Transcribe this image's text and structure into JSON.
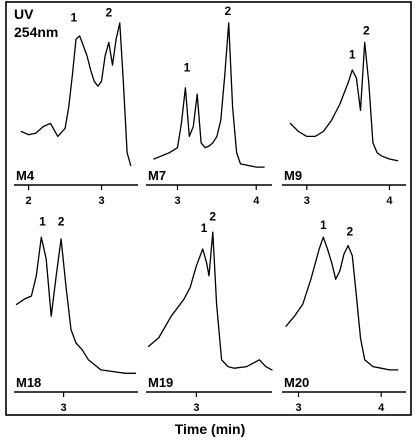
{
  "uv_label_line1": "UV",
  "uv_label_line2": "254nm",
  "xlabel": "Time (min)",
  "chart_data": [
    {
      "type": "line",
      "name": "M4",
      "xlim": [
        1.8,
        3.5
      ],
      "ticks": [
        2,
        3
      ],
      "peak_labels": [
        {
          "text": "1",
          "x": 2.62,
          "y": 0.93
        },
        {
          "text": "2",
          "x": 3.1,
          "y": 0.96
        }
      ],
      "x": [
        1.9,
        2.0,
        2.1,
        2.2,
        2.3,
        2.4,
        2.5,
        2.55,
        2.6,
        2.65,
        2.7,
        2.75,
        2.8,
        2.85,
        2.9,
        2.95,
        3.0,
        3.05,
        3.1,
        3.15,
        3.2,
        3.25,
        3.3,
        3.35,
        3.4
      ],
      "y": [
        0.25,
        0.23,
        0.24,
        0.28,
        0.3,
        0.22,
        0.27,
        0.4,
        0.6,
        0.82,
        0.84,
        0.78,
        0.72,
        0.63,
        0.56,
        0.53,
        0.56,
        0.72,
        0.8,
        0.66,
        0.82,
        0.92,
        0.55,
        0.12,
        0.04
      ]
    },
    {
      "type": "line",
      "name": "M7",
      "xlim": [
        2.6,
        4.2
      ],
      "ticks": [
        3,
        4
      ],
      "peak_labels": [
        {
          "text": "1",
          "x": 3.12,
          "y": 0.62
        },
        {
          "text": "2",
          "x": 3.64,
          "y": 0.97
        }
      ],
      "x": [
        2.7,
        2.8,
        2.9,
        3.0,
        3.05,
        3.1,
        3.15,
        3.2,
        3.25,
        3.3,
        3.35,
        3.4,
        3.45,
        3.5,
        3.55,
        3.6,
        3.65,
        3.7,
        3.75,
        3.8,
        3.9,
        4.0,
        4.1
      ],
      "y": [
        0.08,
        0.1,
        0.12,
        0.15,
        0.3,
        0.52,
        0.22,
        0.28,
        0.48,
        0.18,
        0.15,
        0.16,
        0.18,
        0.22,
        0.32,
        0.6,
        0.92,
        0.4,
        0.12,
        0.05,
        0.04,
        0.03,
        0.03
      ]
    },
    {
      "type": "line",
      "name": "M9",
      "xlim": [
        2.7,
        4.2
      ],
      "ticks": [
        3,
        4
      ],
      "peak_labels": [
        {
          "text": "1",
          "x": 3.55,
          "y": 0.7
        },
        {
          "text": "2",
          "x": 3.72,
          "y": 0.85
        }
      ],
      "x": [
        2.8,
        2.9,
        3.0,
        3.1,
        3.2,
        3.3,
        3.4,
        3.5,
        3.55,
        3.6,
        3.65,
        3.7,
        3.75,
        3.8,
        3.85,
        3.9,
        4.0,
        4.1
      ],
      "y": [
        0.3,
        0.25,
        0.22,
        0.22,
        0.25,
        0.32,
        0.42,
        0.55,
        0.63,
        0.58,
        0.38,
        0.8,
        0.55,
        0.18,
        0.12,
        0.1,
        0.08,
        0.07
      ]
    },
    {
      "type": "line",
      "name": "M18",
      "xlim": [
        2.6,
        3.6
      ],
      "ticks": [
        3
      ],
      "peak_labels": [
        {
          "text": "1",
          "x": 2.83,
          "y": 0.92
        },
        {
          "text": "2",
          "x": 2.98,
          "y": 0.92
        }
      ],
      "x": [
        2.62,
        2.68,
        2.74,
        2.78,
        2.82,
        2.86,
        2.9,
        2.94,
        2.98,
        3.02,
        3.06,
        3.1,
        3.15,
        3.2,
        3.3,
        3.4,
        3.5,
        3.58
      ],
      "y": [
        0.45,
        0.48,
        0.5,
        0.62,
        0.85,
        0.72,
        0.38,
        0.62,
        0.84,
        0.55,
        0.3,
        0.22,
        0.18,
        0.12,
        0.06,
        0.05,
        0.04,
        0.04
      ]
    },
    {
      "type": "line",
      "name": "M19",
      "xlim": [
        2.6,
        3.6
      ],
      "ticks": [
        3
      ],
      "peak_labels": [
        {
          "text": "1",
          "x": 3.06,
          "y": 0.88
        },
        {
          "text": "2",
          "x": 3.13,
          "y": 0.95
        }
      ],
      "x": [
        2.62,
        2.7,
        2.8,
        2.9,
        2.95,
        3.0,
        3.05,
        3.08,
        3.1,
        3.13,
        3.16,
        3.2,
        3.25,
        3.3,
        3.4,
        3.5,
        3.55,
        3.6
      ],
      "y": [
        0.2,
        0.25,
        0.38,
        0.48,
        0.55,
        0.68,
        0.78,
        0.7,
        0.62,
        0.88,
        0.45,
        0.12,
        0.08,
        0.07,
        0.08,
        0.12,
        0.08,
        0.06
      ]
    },
    {
      "type": "line",
      "name": "M20",
      "xlim": [
        2.8,
        4.3
      ],
      "ticks": [
        3,
        4
      ],
      "peak_labels": [
        {
          "text": "1",
          "x": 3.3,
          "y": 0.9
        },
        {
          "text": "2",
          "x": 3.62,
          "y": 0.86
        }
      ],
      "x": [
        2.85,
        2.95,
        3.05,
        3.15,
        3.25,
        3.3,
        3.35,
        3.4,
        3.45,
        3.5,
        3.55,
        3.6,
        3.65,
        3.7,
        3.75,
        3.8,
        3.9,
        4.0,
        4.1,
        4.2
      ],
      "y": [
        0.32,
        0.38,
        0.45,
        0.6,
        0.78,
        0.85,
        0.78,
        0.7,
        0.6,
        0.65,
        0.75,
        0.8,
        0.74,
        0.5,
        0.25,
        0.12,
        0.08,
        0.07,
        0.06,
        0.06
      ]
    }
  ]
}
